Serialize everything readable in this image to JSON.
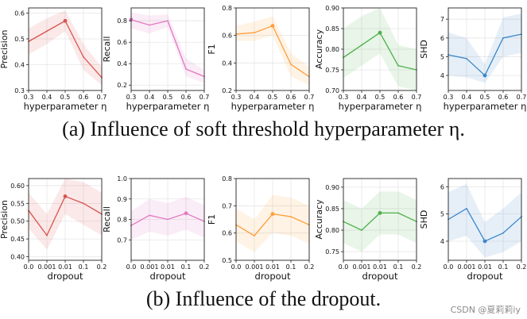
{
  "captions": {
    "a": "(a)  Influence of soft threshold hyperparameter η.",
    "b": "(b)  Influence of the dropout."
  },
  "watermark": "CSDN @夏莉莉iy",
  "chart_data": [
    {
      "type": "line",
      "row": "a",
      "ylabel": "Precision",
      "xlabel": "hyperparameter η",
      "color": "#d9534f",
      "x": [
        0.3,
        0.4,
        0.5,
        0.6,
        0.7
      ],
      "xticks": [
        "0.3",
        "0.4",
        "0.5",
        "0.6",
        "0.7"
      ],
      "values": [
        0.49,
        0.53,
        0.57,
        0.43,
        0.35
      ],
      "band": [
        [
          0.44,
          0.54
        ],
        [
          0.48,
          0.58
        ],
        [
          0.53,
          0.61
        ],
        [
          0.38,
          0.48
        ],
        [
          0.32,
          0.39
        ]
      ],
      "ylim": [
        0.3,
        0.62
      ],
      "yticks": [
        0.3,
        0.4,
        0.5,
        0.6
      ],
      "ytick_labels": [
        "0.3",
        "0.4",
        "0.5",
        "0.6"
      ],
      "marker_index": 2
    },
    {
      "type": "line",
      "row": "a",
      "ylabel": "Recall",
      "xlabel": "hyperparameter η",
      "color": "#e377c2",
      "x": [
        0.3,
        0.4,
        0.5,
        0.6,
        0.7
      ],
      "xticks": [
        "0.3",
        "0.4",
        "0.5",
        "0.6",
        "0.7"
      ],
      "values": [
        0.81,
        0.76,
        0.8,
        0.35,
        0.28
      ],
      "band": [
        [
          0.73,
          0.88
        ],
        [
          0.68,
          0.85
        ],
        [
          0.74,
          0.86
        ],
        [
          0.28,
          0.45
        ],
        [
          0.22,
          0.34
        ]
      ],
      "ylim": [
        0.15,
        0.92
      ],
      "yticks": [
        0.2,
        0.4,
        0.6,
        0.8
      ],
      "ytick_labels": [
        "0.2",
        "0.4",
        "0.6",
        "0.8"
      ],
      "marker_index": 0
    },
    {
      "type": "line",
      "row": "a",
      "ylabel": "F1",
      "xlabel": "hyperparameter η",
      "color": "#ff9f3a",
      "x": [
        0.3,
        0.4,
        0.5,
        0.6,
        0.7
      ],
      "xticks": [
        "0.3",
        "0.4",
        "0.5",
        "0.6",
        "0.7"
      ],
      "values": [
        0.61,
        0.62,
        0.67,
        0.39,
        0.3
      ],
      "band": [
        [
          0.56,
          0.67
        ],
        [
          0.56,
          0.7
        ],
        [
          0.6,
          0.74
        ],
        [
          0.3,
          0.47
        ],
        [
          0.24,
          0.37
        ]
      ],
      "ylim": [
        0.2,
        0.8
      ],
      "yticks": [
        0.2,
        0.4,
        0.6,
        0.8
      ],
      "ytick_labels": [
        "0.2",
        "0.4",
        "0.6",
        "0.8"
      ],
      "marker_index": 2
    },
    {
      "type": "line",
      "row": "a",
      "ylabel": "Accuracy",
      "xlabel": "hyperparameter η",
      "color": "#4daf4a",
      "x": [
        0.3,
        0.4,
        0.5,
        0.6,
        0.7
      ],
      "xticks": [
        "0.3",
        "0.4",
        "0.5",
        "0.6",
        "0.7"
      ],
      "values": [
        0.78,
        0.81,
        0.84,
        0.76,
        0.75
      ],
      "band": [
        [
          0.73,
          0.85
        ],
        [
          0.76,
          0.88
        ],
        [
          0.79,
          0.9
        ],
        [
          0.71,
          0.81
        ],
        [
          0.7,
          0.8
        ]
      ],
      "ylim": [
        0.7,
        0.9
      ],
      "yticks": [
        0.7,
        0.75,
        0.8,
        0.85,
        0.9
      ],
      "ytick_labels": [
        "0.70",
        "0.75",
        "0.80",
        "0.85",
        "0.90"
      ],
      "marker_index": 2
    },
    {
      "type": "line",
      "row": "a",
      "ylabel": "SHD",
      "xlabel": "hyperparameter η",
      "color": "#3a87c8",
      "x": [
        0.3,
        0.4,
        0.5,
        0.6,
        0.7
      ],
      "xticks": [
        "0.3",
        "0.4",
        "0.5",
        "0.6",
        "0.7"
      ],
      "values": [
        5.1,
        4.9,
        4.0,
        6.0,
        6.2
      ],
      "band": [
        [
          4.0,
          6.3
        ],
        [
          3.9,
          6.0
        ],
        [
          3.6,
          4.6
        ],
        [
          5.0,
          7.1
        ],
        [
          5.2,
          7.3
        ]
      ],
      "ylim": [
        3.2,
        7.6
      ],
      "yticks": [
        4,
        5,
        6,
        7
      ],
      "ytick_labels": [
        "4",
        "5",
        "6",
        "7"
      ],
      "marker_index": 2
    },
    {
      "type": "line",
      "row": "b",
      "ylabel": "Precision",
      "xlabel": "dropout",
      "color": "#d9534f",
      "x": [
        0,
        1,
        2,
        3,
        4
      ],
      "xticks": [
        "0.0",
        "0.001",
        "0.01",
        "0.1",
        "0.2"
      ],
      "values": [
        0.53,
        0.46,
        0.57,
        0.55,
        0.52
      ],
      "band": [
        [
          0.48,
          0.58
        ],
        [
          0.42,
          0.52
        ],
        [
          0.52,
          0.62
        ],
        [
          0.49,
          0.61
        ],
        [
          0.46,
          0.58
        ]
      ],
      "ylim": [
        0.39,
        0.62
      ],
      "yticks": [
        0.4,
        0.45,
        0.5,
        0.55,
        0.6
      ],
      "ytick_labels": [
        "0.40",
        "0.45",
        "0.50",
        "0.55",
        "0.60"
      ],
      "marker_index": 2
    },
    {
      "type": "line",
      "row": "b",
      "ylabel": "Recall",
      "xlabel": "dropout",
      "color": "#e377c2",
      "x": [
        0,
        1,
        2,
        3,
        4
      ],
      "xticks": [
        "0.0",
        "0.001",
        "0.01",
        "0.1",
        "0.2"
      ],
      "values": [
        0.77,
        0.82,
        0.8,
        0.83,
        0.79
      ],
      "band": [
        [
          0.7,
          0.84
        ],
        [
          0.74,
          0.9
        ],
        [
          0.72,
          0.88
        ],
        [
          0.75,
          0.91
        ],
        [
          0.71,
          0.87
        ]
      ],
      "ylim": [
        0.6,
        1.0
      ],
      "yticks": [
        0.7,
        0.8,
        0.9,
        1.0
      ],
      "ytick_labels": [
        "0.7",
        "0.8",
        "0.9",
        "1.0"
      ],
      "marker_index": 3
    },
    {
      "type": "line",
      "row": "b",
      "ylabel": "F1",
      "xlabel": "dropout",
      "color": "#ff9f3a",
      "x": [
        0,
        1,
        2,
        3,
        4
      ],
      "xticks": [
        "0.0",
        "0.001",
        "0.01",
        "0.1",
        "0.2"
      ],
      "values": [
        0.63,
        0.59,
        0.67,
        0.66,
        0.63
      ],
      "band": [
        [
          0.57,
          0.69
        ],
        [
          0.53,
          0.65
        ],
        [
          0.6,
          0.74
        ],
        [
          0.59,
          0.73
        ],
        [
          0.56,
          0.7
        ]
      ],
      "ylim": [
        0.5,
        0.8
      ],
      "yticks": [
        0.5,
        0.6,
        0.7,
        0.8
      ],
      "ytick_labels": [
        "0.5",
        "0.6",
        "0.7",
        "0.8"
      ],
      "marker_index": 2
    },
    {
      "type": "line",
      "row": "b",
      "ylabel": "Accuracy",
      "xlabel": "dropout",
      "color": "#4daf4a",
      "x": [
        0,
        1,
        2,
        3,
        4
      ],
      "xticks": [
        "0.0",
        "0.001",
        "0.01",
        "0.1",
        "0.2"
      ],
      "values": [
        0.82,
        0.8,
        0.84,
        0.84,
        0.82
      ],
      "band": [
        [
          0.77,
          0.87
        ],
        [
          0.75,
          0.85
        ],
        [
          0.79,
          0.89
        ],
        [
          0.79,
          0.89
        ],
        [
          0.77,
          0.87
        ]
      ],
      "ylim": [
        0.73,
        0.92
      ],
      "yticks": [
        0.75,
        0.8,
        0.85,
        0.9
      ],
      "ytick_labels": [
        "0.75",
        "0.80",
        "0.85",
        "0.90"
      ],
      "marker_index": 2
    },
    {
      "type": "line",
      "row": "b",
      "ylabel": "SHD",
      "xlabel": "dropout",
      "color": "#3a87c8",
      "x": [
        0,
        1,
        2,
        3,
        4
      ],
      "xticks": [
        "0.0",
        "0.001",
        "0.01",
        "0.1",
        "0.2"
      ],
      "values": [
        4.8,
        5.2,
        4.0,
        4.3,
        4.9
      ],
      "band": [
        [
          4.0,
          5.8
        ],
        [
          4.2,
          6.1
        ],
        [
          3.4,
          4.7
        ],
        [
          3.6,
          5.2
        ],
        [
          4.0,
          5.8
        ]
      ],
      "ylim": [
        3.3,
        6.3
      ],
      "yticks": [
        4,
        5,
        6
      ],
      "ytick_labels": [
        "4",
        "5",
        "6"
      ],
      "marker_index": 2
    }
  ]
}
